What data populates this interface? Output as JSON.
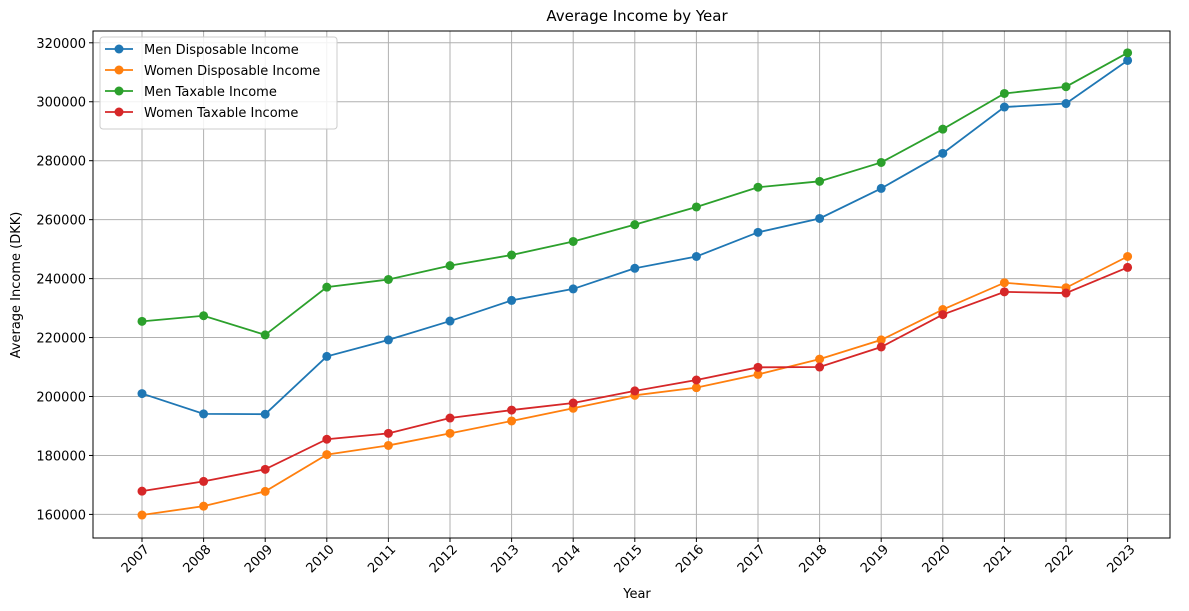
{
  "chart_data": {
    "type": "line",
    "title": "Average Income by Year",
    "xlabel": "Year",
    "ylabel": "Average Income (DKK)",
    "categories": [
      "2007",
      "2008",
      "2009",
      "2010",
      "2011",
      "2012",
      "2013",
      "2014",
      "2015",
      "2016",
      "2017",
      "2018",
      "2019",
      "2020",
      "2021",
      "2022",
      "2023"
    ],
    "ylim": [
      152000,
      324000
    ],
    "yticks": [
      160000,
      180000,
      200000,
      220000,
      240000,
      260000,
      280000,
      300000,
      320000
    ],
    "grid": true,
    "legend_position": "top-left",
    "marker": "circle",
    "series": [
      {
        "name": "Men Disposable Income",
        "color": "#1f77b4",
        "values": [
          201000,
          194100,
          194000,
          213600,
          219200,
          225600,
          232600,
          236500,
          243500,
          247500,
          255700,
          260400,
          270600,
          282500,
          298200,
          299400,
          314000
        ]
      },
      {
        "name": "Women Disposable Income",
        "color": "#ff7f0e",
        "values": [
          159800,
          162800,
          167800,
          180300,
          183400,
          187500,
          191700,
          196000,
          200400,
          203000,
          207500,
          212700,
          219200,
          229500,
          238600,
          236900,
          247500
        ]
      },
      {
        "name": "Men Taxable Income",
        "color": "#2ca02c",
        "values": [
          225500,
          227400,
          220900,
          237100,
          239700,
          244400,
          248000,
          252600,
          258300,
          264300,
          271000,
          273000,
          279400,
          290700,
          302800,
          305100,
          316600
        ]
      },
      {
        "name": "Women Taxable Income",
        "color": "#d62728",
        "values": [
          167900,
          171200,
          175300,
          185500,
          187500,
          192700,
          195400,
          197800,
          201900,
          205600,
          209900,
          210000,
          216800,
          227800,
          235500,
          235100,
          243800
        ]
      }
    ]
  }
}
